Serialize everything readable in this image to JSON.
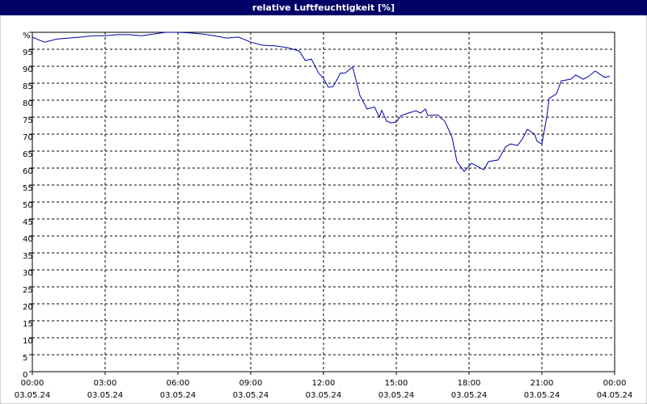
{
  "chart_data": {
    "type": "line",
    "title": "relative Luftfeuchtigkeit [%]",
    "xlim": [
      0,
      24
    ],
    "ylim": [
      0,
      100
    ],
    "xticks": [
      {
        "value": 0,
        "label": "00:00",
        "date": "03.05.24"
      },
      {
        "value": 3,
        "label": "03:00",
        "date": "03.05.24"
      },
      {
        "value": 6,
        "label": "06:00",
        "date": "03.05.24"
      },
      {
        "value": 9,
        "label": "09:00",
        "date": "03.05.24"
      },
      {
        "value": 12,
        "label": "12:00",
        "date": "03.05.24"
      },
      {
        "value": 15,
        "label": "15:00",
        "date": "03.05.24"
      },
      {
        "value": 18,
        "label": "18:00",
        "date": "03.05.24"
      },
      {
        "value": 21,
        "label": "21:00",
        "date": "03.05.24"
      },
      {
        "value": 24,
        "label": "00:00",
        "date": "04.05.24"
      }
    ],
    "yticks": [
      0,
      5,
      10,
      15,
      20,
      25,
      30,
      35,
      40,
      45,
      50,
      55,
      60,
      65,
      70,
      75,
      80,
      85,
      90,
      95,
      {
        "value": 100,
        "label": "%"
      }
    ],
    "grid": true,
    "series": [
      {
        "color": "#0000aa",
        "x": [
          0,
          0.5,
          1,
          1.5,
          2,
          2.5,
          3,
          3.5,
          4,
          4.5,
          5,
          5.5,
          6,
          6.5,
          7,
          7.5,
          8,
          8.5,
          9,
          9.5,
          10,
          10.5,
          11,
          11.25,
          11.5,
          11.8,
          12,
          12.2,
          12.4,
          12.7,
          12.9,
          13.2,
          13.5,
          13.8,
          14.1,
          14.3,
          14.4,
          14.6,
          14.8,
          15,
          15.2,
          15.5,
          15.8,
          16,
          16.2,
          16.3,
          16.7,
          17,
          17.3,
          17.5,
          17.8,
          18.1,
          18.3,
          18.6,
          18.8,
          19.2,
          19.5,
          19.7,
          20,
          20.2,
          20.4,
          20.7,
          20.8,
          21,
          21.2,
          21.3,
          21.6,
          21.8,
          22.2,
          22.4,
          22.7,
          22.9,
          23.2,
          23.4,
          23.6,
          23.8
        ],
        "values": [
          98.6,
          97.1,
          98,
          98.3,
          98.6,
          99,
          99,
          99.3,
          99.3,
          99,
          99.5,
          100,
          100,
          99.8,
          99.5,
          99,
          98.3,
          98.6,
          97.1,
          96.2,
          96,
          95.5,
          94.5,
          91.7,
          92.1,
          88,
          86.4,
          83.8,
          84,
          88,
          88,
          89.8,
          81.4,
          77.4,
          78,
          75,
          77,
          73.8,
          73.3,
          73.6,
          75.5,
          76.2,
          76.9,
          76.2,
          77.4,
          75.5,
          75.7,
          73.8,
          69,
          61.9,
          59,
          61.4,
          60.7,
          59.5,
          61.9,
          62.4,
          66.2,
          67.1,
          66.7,
          68.6,
          71.4,
          70,
          67.9,
          67.1,
          75,
          80.5,
          81.9,
          85.7,
          86.2,
          87.4,
          86.2,
          86.9,
          88.6,
          87.6,
          86.7,
          87.1
        ]
      }
    ]
  }
}
